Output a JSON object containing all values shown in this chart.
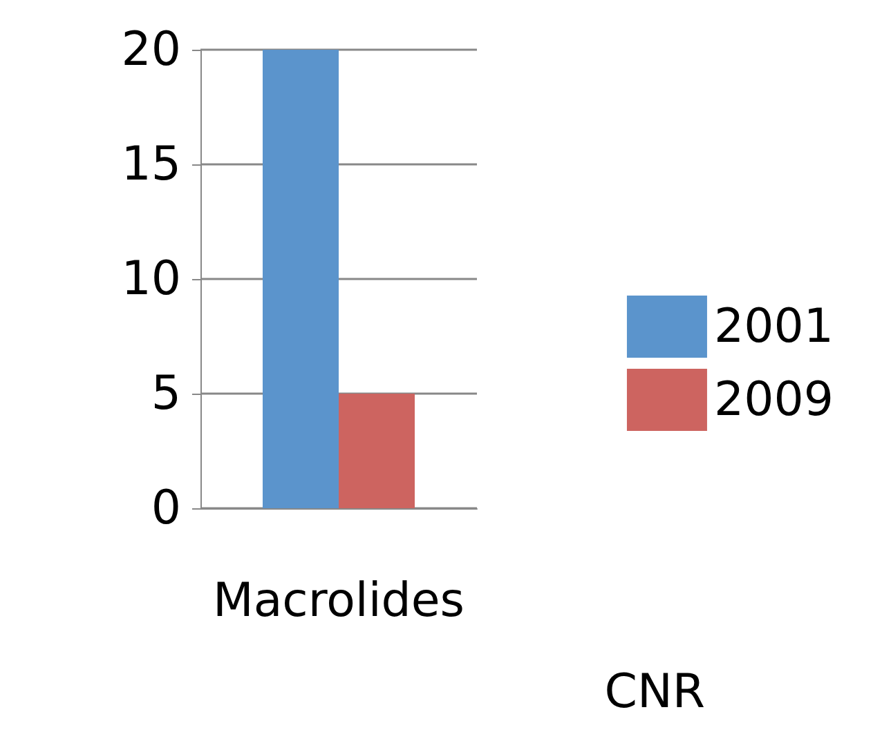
{
  "chart_data": {
    "type": "bar",
    "categories": [
      "Macrolides"
    ],
    "series": [
      {
        "name": "2001",
        "color": "#5b94cc",
        "values": [
          20
        ]
      },
      {
        "name": "2009",
        "color": "#cd6460",
        "values": [
          5
        ]
      }
    ],
    "ylim": [
      0,
      20
    ],
    "yticks": [
      0,
      5,
      10,
      15,
      20
    ],
    "grid": "y",
    "legend": "right",
    "annotations": [
      "CNR"
    ]
  }
}
